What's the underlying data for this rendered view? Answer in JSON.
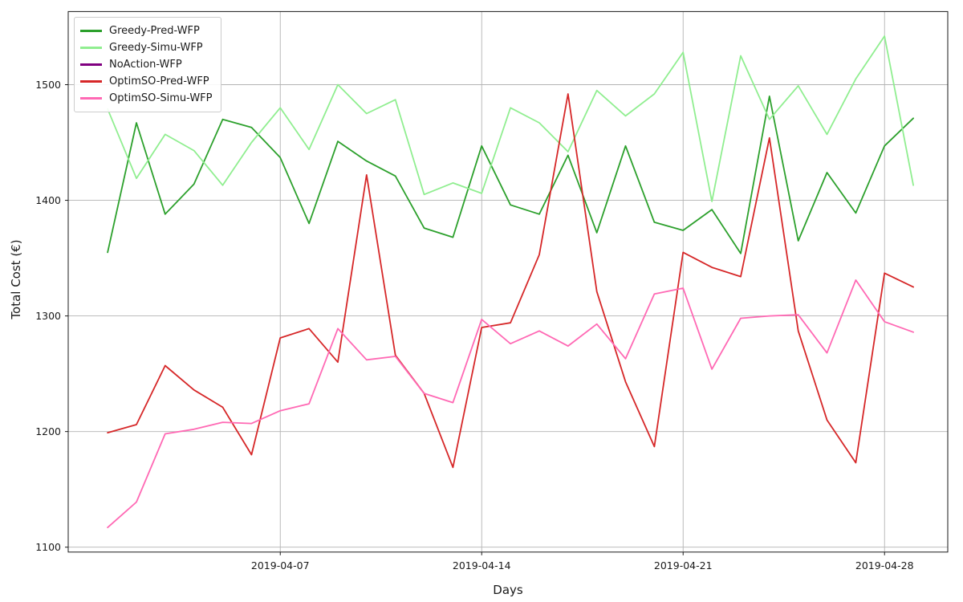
{
  "figure": {
    "background": "#ffffff",
    "grid_color": "#b3b3b3",
    "spine_color": "#1a1a1a",
    "tick_color": "#1a1a1a"
  },
  "chart_data": {
    "type": "line",
    "title": "",
    "xlabel": "Days",
    "ylabel": "Total Cost (€)",
    "grid": true,
    "legend_position": "upper left",
    "x": [
      "2019-04-01",
      "2019-04-02",
      "2019-04-03",
      "2019-04-04",
      "2019-04-05",
      "2019-04-06",
      "2019-04-07",
      "2019-04-08",
      "2019-04-09",
      "2019-04-10",
      "2019-04-11",
      "2019-04-12",
      "2019-04-13",
      "2019-04-14",
      "2019-04-15",
      "2019-04-16",
      "2019-04-17",
      "2019-04-18",
      "2019-04-19",
      "2019-04-20",
      "2019-04-21",
      "2019-04-22",
      "2019-04-23",
      "2019-04-24",
      "2019-04-25",
      "2019-04-26",
      "2019-04-27",
      "2019-04-28",
      "2019-04-29"
    ],
    "x_tick_labels": [
      "2019-04-07",
      "2019-04-14",
      "2019-04-21",
      "2019-04-28"
    ],
    "x_tick_day_indices": [
      6,
      13,
      20,
      27
    ],
    "y_ticks": [
      1100,
      1200,
      1300,
      1400,
      1500
    ],
    "ylim": [
      1095.75,
      1563.25
    ],
    "series": [
      {
        "name": "Greedy-Pred-WFP",
        "color": "#2ca02c",
        "values": [
          1355,
          1467,
          1388,
          1414,
          1470,
          1463,
          1437,
          1380,
          1451,
          1434,
          1421,
          1376,
          1368,
          1447,
          1396,
          1388,
          1439,
          1372,
          1447,
          1381,
          1374,
          1392,
          1354,
          1490,
          1365,
          1424,
          1389,
          1447,
          1471
        ]
      },
      {
        "name": "Greedy-Simu-WFP",
        "color": "#90ee90",
        "values": [
          1479,
          1419,
          1457,
          1443,
          1413,
          1450,
          1480,
          1444,
          1500,
          1475,
          1487,
          1405,
          1415,
          1406,
          1480,
          1467,
          1442,
          1495,
          1473,
          1492,
          1528,
          1399,
          1525,
          1470,
          1499,
          1457,
          1505,
          1542,
          1413
        ]
      },
      {
        "name": "NoAction-WFP",
        "color": "#800080",
        "values": null,
        "visible": false,
        "note": "legend entry only; no line visible in the plot"
      },
      {
        "name": "OptimSO-Pred-WFP",
        "color": "#d62728",
        "values": [
          1199,
          1206,
          1257,
          1236,
          1221,
          1180,
          1281,
          1289,
          1260,
          1422,
          1266,
          1233,
          1169,
          1290,
          1294,
          1353,
          1492,
          1321,
          1243,
          1187,
          1355,
          1342,
          1334,
          1454,
          1287,
          1210,
          1173,
          1337,
          1325
        ]
      },
      {
        "name": "OptimSO-Simu-WFP",
        "color": "#ff69b4",
        "values": [
          1117,
          1139,
          1198,
          1202,
          1208,
          1207,
          1218,
          1224,
          1289,
          1262,
          1265,
          1233,
          1225,
          1297,
          1276,
          1287,
          1274,
          1293,
          1263,
          1319,
          1324,
          1254,
          1298,
          1300,
          1301,
          1268,
          1331,
          1295,
          1286
        ]
      }
    ]
  }
}
